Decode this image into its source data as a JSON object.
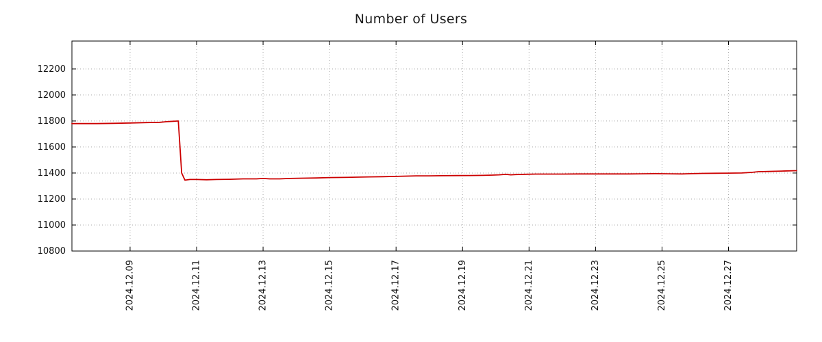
{
  "page": {
    "background": "#ffffff"
  },
  "chart_data": {
    "type": "line",
    "title": "Number of Users",
    "xlabel": "",
    "ylabel": "",
    "legend": "none",
    "grid": "dotted",
    "x_domain_days": [
      7.25,
      29.05
    ],
    "ylim": [
      10800,
      12415
    ],
    "yticks": [
      10800,
      11000,
      11200,
      11400,
      11600,
      11800,
      12000,
      12200
    ],
    "xticks": [
      {
        "label": "2024.12.09",
        "day": 9
      },
      {
        "label": "2024.12.11",
        "day": 11
      },
      {
        "label": "2024.12.13",
        "day": 13
      },
      {
        "label": "2024.12.15",
        "day": 15
      },
      {
        "label": "2024.12.17",
        "day": 17
      },
      {
        "label": "2024.12.19",
        "day": 19
      },
      {
        "label": "2024.12.21",
        "day": 21
      },
      {
        "label": "2024.12.23",
        "day": 23
      },
      {
        "label": "2024.12.25",
        "day": 25
      },
      {
        "label": "2024.12.27",
        "day": 27
      }
    ],
    "series": [
      {
        "name": "Number of Users",
        "color": "#cc0000",
        "x_days": [
          7.25,
          8.0,
          8.5,
          9.0,
          9.5,
          9.9,
          10.1,
          10.3,
          10.45,
          10.55,
          10.65,
          10.8,
          11.0,
          11.3,
          11.6,
          12.0,
          12.4,
          12.8,
          13.0,
          13.2,
          13.5,
          13.8,
          14.2,
          14.6,
          15.0,
          15.4,
          15.8,
          16.2,
          16.6,
          17.0,
          17.3,
          17.6,
          18.0,
          18.4,
          18.8,
          19.2,
          19.6,
          19.9,
          20.1,
          20.3,
          20.45,
          20.6,
          20.9,
          21.2,
          21.6,
          22.0,
          22.5,
          23.0,
          23.5,
          24.0,
          24.4,
          24.8,
          25.2,
          25.6,
          25.9,
          26.2,
          26.6,
          27.0,
          27.4,
          27.7,
          27.9,
          28.2,
          28.6,
          29.05
        ],
        "values": [
          11780,
          11780,
          11782,
          11785,
          11788,
          11790,
          11795,
          11798,
          11800,
          11400,
          11345,
          11350,
          11350,
          11348,
          11350,
          11352,
          11355,
          11355,
          11358,
          11355,
          11355,
          11358,
          11360,
          11362,
          11365,
          11366,
          11368,
          11370,
          11372,
          11374,
          11376,
          11378,
          11378,
          11379,
          11380,
          11381,
          11382,
          11384,
          11386,
          11390,
          11386,
          11388,
          11390,
          11392,
          11392,
          11392,
          11393,
          11393,
          11393,
          11393,
          11394,
          11395,
          11394,
          11393,
          11395,
          11397,
          11398,
          11399,
          11400,
          11405,
          11410,
          11412,
          11415,
          11418
        ]
      }
    ]
  },
  "style": {
    "grid_color": "#a8a8a8",
    "axis_color": "#000000",
    "text_color": "#111111",
    "line_width": 1.8
  }
}
